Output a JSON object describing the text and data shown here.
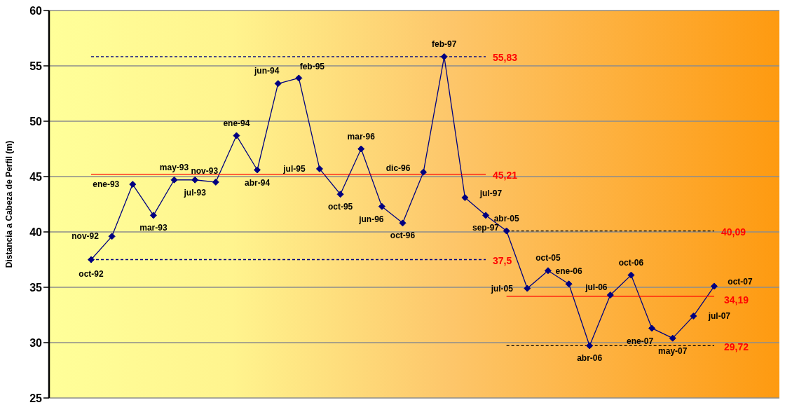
{
  "chart_data": {
    "type": "line",
    "ylabel": "Distancia a Cabeza de Perfil (m)",
    "categories": [
      null,
      null,
      null,
      null,
      null,
      null,
      null,
      null,
      null,
      null,
      null,
      null,
      null,
      null,
      null,
      null,
      null,
      null,
      null,
      null,
      null,
      null,
      null,
      null,
      null,
      null,
      null,
      null,
      null,
      null,
      null
    ],
    "ylim": [
      25,
      60
    ],
    "yticks": [
      25,
      30,
      35,
      40,
      45,
      50,
      55,
      60
    ],
    "grid": "y",
    "tick_labels": "y",
    "legend": false,
    "series": [
      {
        "color": "#000080",
        "marker": "diamond",
        "line_style": "solid",
        "values": [
          37.5,
          39.6,
          44.3,
          41.5,
          44.7,
          44.7,
          44.5,
          48.7,
          45.6,
          53.4,
          53.9,
          45.7,
          43.4,
          47.5,
          42.3,
          40.8,
          45.4,
          55.83,
          43.1,
          41.5,
          40.09,
          34.9,
          36.5,
          35.3,
          29.72,
          34.3,
          36.1,
          31.3,
          30.4,
          32.4,
          35.1
        ]
      },
      {
        "color": "#000080",
        "marker": "none",
        "line_style": "dashed",
        "values": [
          55.83,
          55.83,
          55.83,
          55.83,
          55.83,
          55.83,
          55.83,
          55.83,
          55.83,
          55.83,
          55.83,
          55.83,
          55.83,
          55.83,
          55.83,
          55.83,
          55.83,
          55.83,
          55.83,
          55.83,
          null,
          null,
          null,
          null,
          null,
          null,
          null,
          null,
          null,
          null,
          null
        ]
      },
      {
        "color": "#ff0000",
        "marker": "none",
        "line_style": "solid",
        "values": [
          45.21,
          45.21,
          45.21,
          45.21,
          45.21,
          45.21,
          45.21,
          45.21,
          45.21,
          45.21,
          45.21,
          45.21,
          45.21,
          45.21,
          45.21,
          45.21,
          45.21,
          45.21,
          45.21,
          45.21,
          null,
          null,
          null,
          null,
          null,
          null,
          null,
          null,
          null,
          null,
          null
        ]
      },
      {
        "color": "#000080",
        "marker": "none",
        "line_style": "dashed",
        "values": [
          37.5,
          37.5,
          37.5,
          37.5,
          37.5,
          37.5,
          37.5,
          37.5,
          37.5,
          37.5,
          37.5,
          37.5,
          37.5,
          37.5,
          37.5,
          37.5,
          37.5,
          37.5,
          37.5,
          37.5,
          null,
          null,
          null,
          null,
          null,
          null,
          null,
          null,
          null,
          null,
          null
        ]
      },
      {
        "color": "#000000",
        "marker": "none",
        "line_style": "dashed",
        "values": [
          null,
          null,
          null,
          null,
          null,
          null,
          null,
          null,
          null,
          null,
          null,
          null,
          null,
          null,
          null,
          null,
          null,
          null,
          null,
          null,
          40.09,
          40.09,
          40.09,
          40.09,
          40.09,
          40.09,
          40.09,
          40.09,
          40.09,
          40.09,
          40.09
        ]
      },
      {
        "color": "#ff0000",
        "marker": "none",
        "line_style": "solid",
        "values": [
          null,
          null,
          null,
          null,
          null,
          null,
          null,
          null,
          null,
          null,
          null,
          null,
          null,
          null,
          null,
          null,
          null,
          null,
          null,
          null,
          34.19,
          34.19,
          34.19,
          34.19,
          34.19,
          34.19,
          34.19,
          34.19,
          34.19,
          34.19,
          34.19
        ]
      },
      {
        "color": "#000000",
        "marker": "none",
        "line_style": "dashed",
        "values": [
          null,
          null,
          null,
          null,
          null,
          null,
          null,
          null,
          null,
          null,
          null,
          null,
          null,
          null,
          null,
          null,
          null,
          null,
          null,
          null,
          29.72,
          29.72,
          29.72,
          29.72,
          29.72,
          29.72,
          29.72,
          29.72,
          29.72,
          29.72,
          29.72
        ]
      }
    ],
    "annotations": [
      "oct-92",
      "nov-92",
      "ene-93",
      "mar-93",
      "may-93",
      "jul-93",
      "nov-93",
      "ene-94",
      "abr-94",
      "jun-94",
      "feb-95",
      "jul-95",
      "oct-95",
      "mar-96",
      "jun-96",
      "oct-96",
      "dic-96",
      "feb-97",
      "jul-97",
      "sep-97",
      "abr-05",
      "jul-05",
      "oct-05",
      "ene-06",
      "abr-06",
      "jul-06",
      "oct-06",
      "ene-07",
      "may-07",
      "jul-07",
      "oct-07",
      "55,83",
      "45,21",
      "37,5",
      "40,09",
      "34,19",
      "29,72"
    ]
  }
}
